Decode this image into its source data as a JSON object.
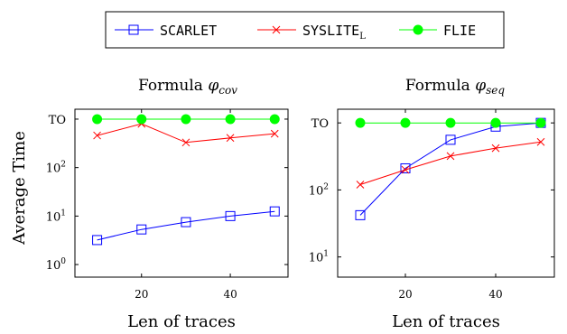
{
  "legend": {
    "entries": [
      {
        "name": "SCARLET",
        "sub": "",
        "color": "#0000ff",
        "marker": "square-icon"
      },
      {
        "name": "SYSLITE",
        "sub": "L",
        "color": "#ff0000",
        "marker": "cross-icon"
      },
      {
        "name": "FLIE",
        "sub": "",
        "color": "#00ff00",
        "marker": "filled-circle-icon"
      }
    ]
  },
  "shared": {
    "ylabel": "Average Time",
    "xlabel": "Len of traces"
  },
  "chart_data": [
    {
      "type": "line",
      "title_prefix": "Formula ",
      "title_symbol": "φ",
      "title_sub": "cov",
      "xlabel": "Len of traces",
      "ylabel": "Average Time",
      "y_scale": "log",
      "x_ticks": [
        20,
        40
      ],
      "y_ticks": [
        {
          "value": 1,
          "base": "10",
          "exp": "0"
        },
        {
          "value": 10,
          "base": "10",
          "exp": "1"
        },
        {
          "value": 100,
          "base": "10",
          "exp": "2"
        },
        {
          "value": 1000,
          "label": "TO"
        }
      ],
      "xlim": [
        5,
        53
      ],
      "ylim": [
        0.55,
        1600
      ],
      "x": [
        10,
        20,
        30,
        40,
        50
      ],
      "series": [
        {
          "name": "SCARLET",
          "values": [
            3.2,
            5.3,
            7.5,
            10,
            12.5
          ]
        },
        {
          "name": "SYSLITE_L",
          "values": [
            460,
            800,
            330,
            410,
            500
          ]
        },
        {
          "name": "FLIE",
          "values": [
            1000,
            1000,
            1000,
            1000,
            1000
          ]
        }
      ]
    },
    {
      "type": "line",
      "title_prefix": "Formula ",
      "title_symbol": "φ",
      "title_sub": "seq",
      "xlabel": "Len of traces",
      "ylabel": "",
      "y_scale": "log",
      "x_ticks": [
        20,
        40
      ],
      "y_ticks": [
        {
          "value": 10,
          "base": "10",
          "exp": "1"
        },
        {
          "value": 100,
          "base": "10",
          "exp": "2"
        },
        {
          "value": 1000,
          "label": "TO"
        }
      ],
      "xlim": [
        5,
        53
      ],
      "ylim": [
        5,
        1600
      ],
      "x": [
        10,
        20,
        30,
        40,
        50
      ],
      "series": [
        {
          "name": "SCARLET",
          "values": [
            42,
            210,
            560,
            880,
            1000
          ]
        },
        {
          "name": "SYSLITE_L",
          "values": [
            120,
            200,
            320,
            420,
            520
          ]
        },
        {
          "name": "FLIE",
          "values": [
            1000,
            1000,
            1000,
            1000,
            1000
          ]
        }
      ]
    }
  ]
}
